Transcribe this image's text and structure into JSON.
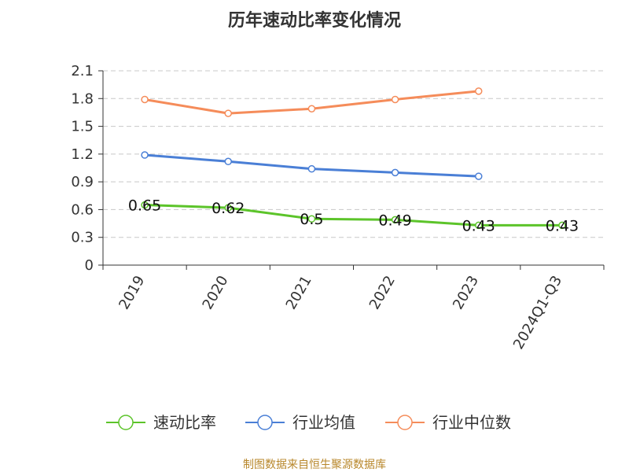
{
  "chart_data": {
    "type": "line",
    "title": "历年速动比率变化情况",
    "categories": [
      "2019",
      "2020",
      "2021",
      "2022",
      "2023",
      "2024Q1-Q3"
    ],
    "ylim": [
      0,
      2.1
    ],
    "yticks": [
      "0",
      "0.3",
      "0.6",
      "0.9",
      "1.2",
      "1.5",
      "1.8",
      "2.1"
    ],
    "grid": true,
    "legend_position": "bottom",
    "series": [
      {
        "name": "速动比率",
        "color": "#5cc42a",
        "values": [
          0.65,
          0.62,
          0.5,
          0.49,
          0.43,
          0.43
        ],
        "labels": [
          "0.65",
          "0.62",
          "0.5",
          "0.49",
          "0.43",
          "0.43"
        ]
      },
      {
        "name": "行业均值",
        "color": "#4a7fd6",
        "values": [
          1.19,
          1.12,
          1.04,
          1.0,
          0.96,
          null
        ]
      },
      {
        "name": "行业中位数",
        "color": "#f58c5a",
        "values": [
          1.79,
          1.64,
          1.69,
          1.79,
          1.88,
          null
        ]
      }
    ]
  },
  "source": "制图数据来自恒生聚源数据库"
}
